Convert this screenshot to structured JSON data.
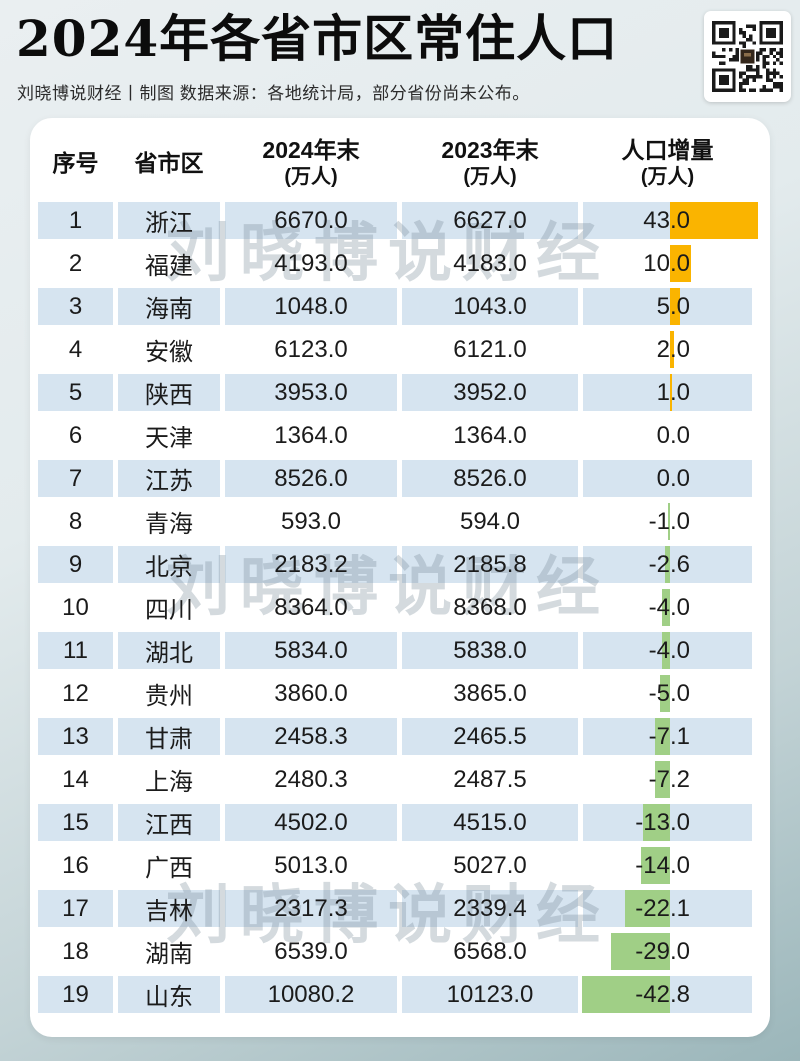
{
  "header": {
    "title": "2024年各省市区常住人口",
    "subtitle": "刘晓博说财经丨制图  数据来源：各地统计局，部分省份尚未公布。"
  },
  "watermark": {
    "text": "刘晓博说财经"
  },
  "colors": {
    "positive_bar": "#fab400",
    "negative_bar": "#a0cf86",
    "row_stripe": "#d6e4f0",
    "card": "#ffffff"
  },
  "table": {
    "columns": [
      {
        "label": "序号",
        "sub": ""
      },
      {
        "label": "省市区",
        "sub": ""
      },
      {
        "label": "2024年末",
        "sub": "(万人)"
      },
      {
        "label": "2023年末",
        "sub": "(万人)"
      },
      {
        "label": "人口增量",
        "sub": "(万人)"
      }
    ],
    "rows": [
      {
        "rank": "1",
        "province": "浙江",
        "pop2024": "6670.0",
        "pop2023": "6627.0",
        "change": "43.0"
      },
      {
        "rank": "2",
        "province": "福建",
        "pop2024": "4193.0",
        "pop2023": "4183.0",
        "change": "10.0"
      },
      {
        "rank": "3",
        "province": "海南",
        "pop2024": "1048.0",
        "pop2023": "1043.0",
        "change": "5.0"
      },
      {
        "rank": "4",
        "province": "安徽",
        "pop2024": "6123.0",
        "pop2023": "6121.0",
        "change": "2.0"
      },
      {
        "rank": "5",
        "province": "陕西",
        "pop2024": "3953.0",
        "pop2023": "3952.0",
        "change": "1.0"
      },
      {
        "rank": "6",
        "province": "天津",
        "pop2024": "1364.0",
        "pop2023": "1364.0",
        "change": "0.0"
      },
      {
        "rank": "7",
        "province": "江苏",
        "pop2024": "8526.0",
        "pop2023": "8526.0",
        "change": "0.0"
      },
      {
        "rank": "8",
        "province": "青海",
        "pop2024": "593.0",
        "pop2023": "594.0",
        "change": "-1.0"
      },
      {
        "rank": "9",
        "province": "北京",
        "pop2024": "2183.2",
        "pop2023": "2185.8",
        "change": "-2.6"
      },
      {
        "rank": "10",
        "province": "四川",
        "pop2024": "8364.0",
        "pop2023": "8368.0",
        "change": "-4.0"
      },
      {
        "rank": "11",
        "province": "湖北",
        "pop2024": "5834.0",
        "pop2023": "5838.0",
        "change": "-4.0"
      },
      {
        "rank": "12",
        "province": "贵州",
        "pop2024": "3860.0",
        "pop2023": "3865.0",
        "change": "-5.0"
      },
      {
        "rank": "13",
        "province": "甘肃",
        "pop2024": "2458.3",
        "pop2023": "2465.5",
        "change": "-7.1"
      },
      {
        "rank": "14",
        "province": "上海",
        "pop2024": "2480.3",
        "pop2023": "2487.5",
        "change": "-7.2"
      },
      {
        "rank": "15",
        "province": "江西",
        "pop2024": "4502.0",
        "pop2023": "4515.0",
        "change": "-13.0"
      },
      {
        "rank": "16",
        "province": "广西",
        "pop2024": "5013.0",
        "pop2023": "5027.0",
        "change": "-14.0"
      },
      {
        "rank": "17",
        "province": "吉林",
        "pop2024": "2317.3",
        "pop2023": "2339.4",
        "change": "-22.1"
      },
      {
        "rank": "18",
        "province": "湖南",
        "pop2024": "6539.0",
        "pop2023": "6568.0",
        "change": "-29.0"
      },
      {
        "rank": "19",
        "province": "山东",
        "pop2024": "10080.2",
        "pop2023": "10123.0",
        "change": "-42.8"
      }
    ]
  },
  "chart_data": {
    "type": "table",
    "title": "2024年各省市区常住人口",
    "subtitle": "刘晓博说财经丨制图  数据来源：各地统计局，部分省份尚未公布。",
    "columns": [
      "序号",
      "省市区",
      "2024年末(万人)",
      "2023年末(万人)",
      "人口增量(万人)"
    ],
    "categories": [
      "浙江",
      "福建",
      "海南",
      "安徽",
      "陕西",
      "天津",
      "江苏",
      "青海",
      "北京",
      "四川",
      "湖北",
      "贵州",
      "甘肃",
      "上海",
      "江西",
      "广西",
      "吉林",
      "湖南",
      "山东"
    ],
    "series": [
      {
        "name": "2024年末(万人)",
        "values": [
          6670.0,
          4193.0,
          1048.0,
          6123.0,
          3953.0,
          1364.0,
          8526.0,
          593.0,
          2183.2,
          8364.0,
          5834.0,
          3860.0,
          2458.3,
          2480.3,
          4502.0,
          5013.0,
          2317.3,
          6539.0,
          10080.2
        ]
      },
      {
        "name": "2023年末(万人)",
        "values": [
          6627.0,
          4183.0,
          1043.0,
          6121.0,
          3952.0,
          1364.0,
          8526.0,
          594.0,
          2185.8,
          8368.0,
          5838.0,
          3865.0,
          2465.5,
          2487.5,
          4515.0,
          5027.0,
          2339.4,
          6568.0,
          10123.0
        ]
      },
      {
        "name": "人口增量(万人)",
        "values": [
          43.0,
          10.0,
          5.0,
          2.0,
          1.0,
          0.0,
          0.0,
          -1.0,
          -2.6,
          -4.0,
          -4.0,
          -5.0,
          -7.1,
          -7.2,
          -13.0,
          -14.0,
          -22.1,
          -29.0,
          -42.8
        ]
      }
    ],
    "embedded_bar": {
      "type": "bar",
      "orientation": "horizontal",
      "series_shown": "人口增量(万人)",
      "positive_color": "#fab400",
      "negative_color": "#a0cf86"
    }
  }
}
